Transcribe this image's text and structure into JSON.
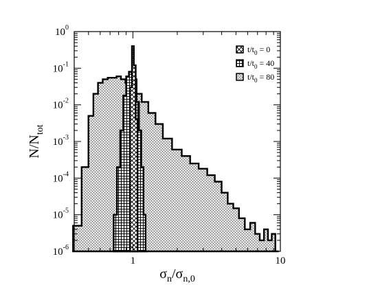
{
  "chart_data": {
    "type": "step-histogram",
    "xlabel": "σn/σn,0",
    "ylabel": "N/Ntot",
    "xscale": "log",
    "yscale": "log",
    "xlim": [
      0.4,
      10
    ],
    "ylim": [
      1e-06,
      1
    ],
    "x_ticks": [
      {
        "value": 1,
        "label": "1"
      },
      {
        "value": 10,
        "label": "10"
      }
    ],
    "y_ticks": [
      {
        "value": 1e-06,
        "base": "10",
        "exp": "-6"
      },
      {
        "value": 1e-05,
        "base": "10",
        "exp": "-5"
      },
      {
        "value": 0.0001,
        "base": "10",
        "exp": "-4"
      },
      {
        "value": 0.001,
        "base": "10",
        "exp": "-3"
      },
      {
        "value": 0.01,
        "base": "10",
        "exp": "-2"
      },
      {
        "value": 0.1,
        "base": "10",
        "exp": "-1"
      },
      {
        "value": 1,
        "base": "10",
        "exp": "0"
      }
    ],
    "legend_position": "top-right",
    "series": [
      {
        "name": "t/t0 = 0",
        "legend": {
          "pre": "t/t",
          "sub": "0",
          "post": " = 0"
        },
        "pattern": "cross",
        "x": [
          0.97,
          1.0,
          1.03,
          1.06
        ],
        "y": [
          0.03,
          0.4,
          0.12,
          0.004
        ]
      },
      {
        "name": "t/t0 = 40",
        "legend": {
          "pre": "t/t",
          "sub": "0",
          "post": " = 40"
        },
        "pattern": "grid",
        "x": [
          0.76,
          0.8,
          0.84,
          0.88,
          0.92,
          0.96,
          1.0,
          1.04,
          1.08,
          1.12,
          1.16,
          1.2,
          1.24
        ],
        "y": [
          1e-05,
          0.0002,
          0.002,
          0.018,
          0.06,
          0.08,
          0.07,
          0.05,
          0.012,
          0.002,
          0.0002,
          1e-05,
          1e-06
        ]
      },
      {
        "name": "t/t0 = 80",
        "legend": {
          "pre": "t/t",
          "sub": "0",
          "post": " = 80"
        },
        "pattern": "dots",
        "x": [
          0.42,
          0.48,
          0.52,
          0.56,
          0.6,
          0.65,
          0.7,
          0.75,
          0.8,
          0.86,
          0.92,
          1.0,
          1.1,
          1.2,
          1.35,
          1.5,
          1.7,
          2.0,
          2.3,
          2.6,
          3.0,
          3.4,
          3.8,
          4.2,
          4.6,
          5.0,
          5.5,
          6.0,
          6.5,
          7.0,
          7.5,
          8.0,
          8.5,
          9.0,
          9.5
        ],
        "y": [
          5e-06,
          0.0002,
          0.005,
          0.02,
          0.04,
          0.05,
          0.055,
          0.055,
          0.06,
          0.05,
          0.04,
          0.03,
          0.02,
          0.012,
          0.006,
          0.003,
          0.0012,
          0.0006,
          0.0004,
          0.00025,
          0.00018,
          0.00012,
          8e-05,
          4e-05,
          2e-05,
          1.5e-05,
          8e-06,
          4e-06,
          6e-06,
          3e-06,
          2e-06,
          4e-06,
          2e-06,
          3e-06,
          1e-06
        ]
      }
    ]
  }
}
